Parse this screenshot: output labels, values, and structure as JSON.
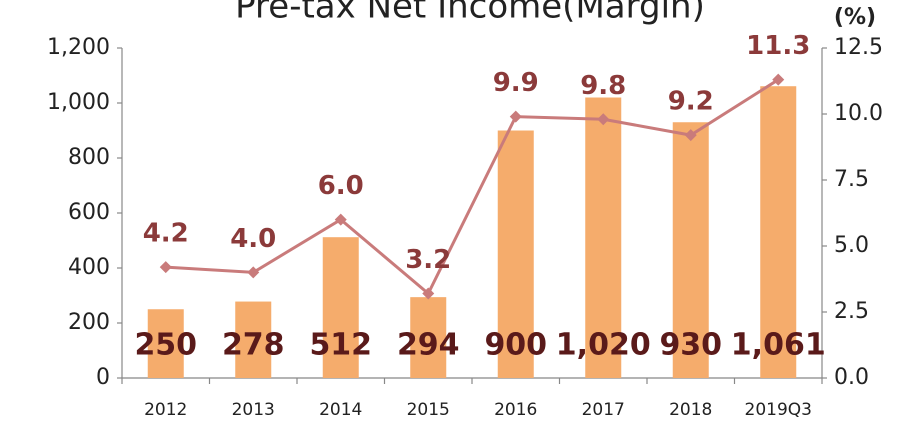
{
  "chart_data": {
    "type": "bar_line",
    "title": "Pre-tax Net Income(Margin)",
    "y2_label": "(%)",
    "categories": [
      "2012",
      "2013",
      "2014",
      "2015",
      "2016",
      "2017",
      "2018",
      "2019Q3"
    ],
    "series": [
      {
        "name": "Pre-tax Net Income",
        "type": "bar",
        "color": "#f5ac6c",
        "values": [
          250,
          278,
          512,
          294,
          900,
          1020,
          930,
          1061
        ],
        "value_labels": [
          "250",
          "278",
          "512",
          "294",
          "900",
          "1,020",
          "930",
          "1,061"
        ]
      },
      {
        "name": "Margin",
        "type": "line",
        "axis": "y2",
        "color": "#c97b7b",
        "values": [
          4.2,
          4.0,
          6.0,
          3.2,
          9.9,
          9.8,
          9.2,
          11.3
        ],
        "value_labels": [
          "4.2",
          "4.0",
          "6.0",
          "3.2",
          "9.9",
          "9.8",
          "9.2",
          "11.3"
        ]
      }
    ],
    "ylim": [
      0,
      1200
    ],
    "yticks": [
      0,
      200,
      400,
      600,
      800,
      {
        "value": 1000,
        "label": "1,000"
      },
      {
        "value": 1200,
        "label": "1,200"
      }
    ],
    "y2lim": [
      0,
      12.5
    ],
    "y2ticks": [
      {
        "value": 0,
        "label": "0.0"
      },
      {
        "value": 2.5,
        "label": "2.5"
      },
      {
        "value": 5,
        "label": "5.0"
      },
      {
        "value": 7.5,
        "label": "7.5"
      },
      {
        "value": 10,
        "label": "10.0"
      },
      {
        "value": 12.5,
        "label": "12.5"
      }
    ],
    "grid": false
  }
}
